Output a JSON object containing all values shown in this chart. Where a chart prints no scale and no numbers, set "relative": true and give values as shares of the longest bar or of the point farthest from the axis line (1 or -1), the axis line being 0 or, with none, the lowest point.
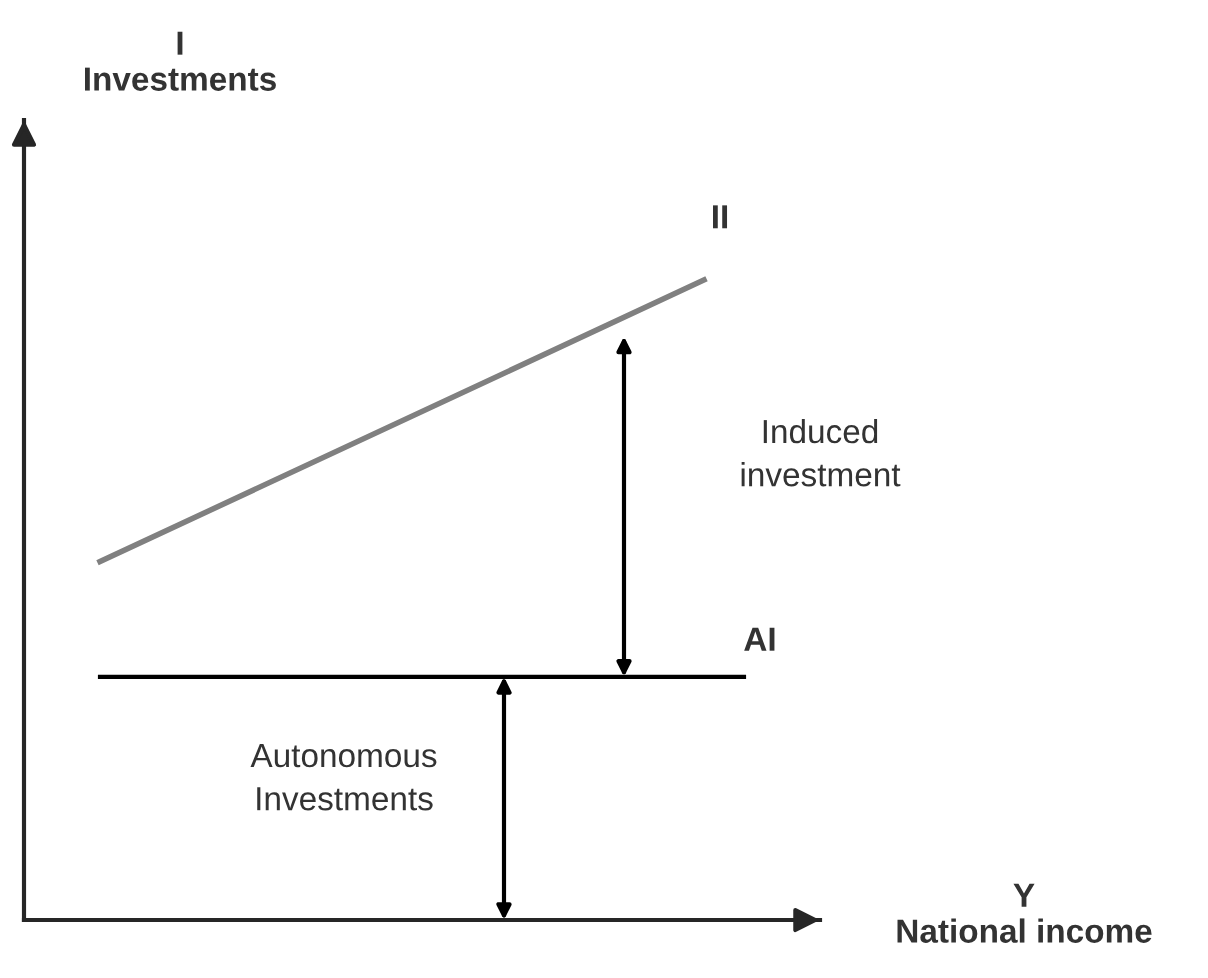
{
  "chart_data": {
    "type": "line",
    "relative": true,
    "xlabel": "Y\nNational income",
    "categories": [
      null,
      null
    ],
    "series": [
      {
        "name": "II",
        "color": "#808080",
        "values": [
          0.56,
          1
        ]
      }
    ],
    "ref_lines": [
      {
        "axis": "y",
        "value": 0.38,
        "label": "AI",
        "color": "#000000"
      }
    ],
    "annotations": [
      "Induced investment",
      "Autonomous Investments",
      "I\nInvestments"
    ],
    "legend": false,
    "grid": false,
    "marker": "none",
    "line_style": "solid"
  }
}
